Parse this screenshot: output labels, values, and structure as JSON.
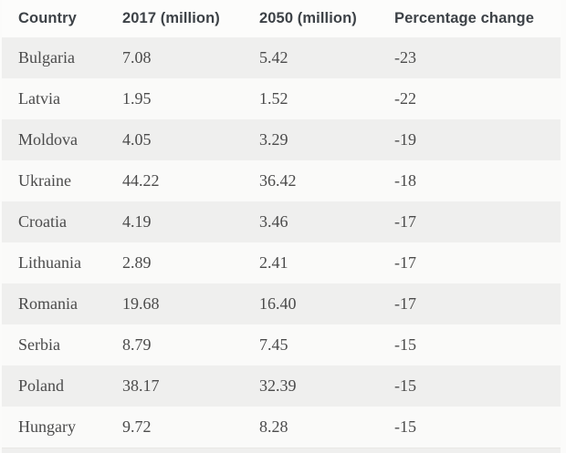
{
  "table": {
    "columns": [
      {
        "label": "Country"
      },
      {
        "label": "2017 (million)"
      },
      {
        "label": "2050 (million)"
      },
      {
        "label": "Percentage change"
      }
    ],
    "rows": [
      {
        "country": "Bulgaria",
        "pop2017": "7.08",
        "pop2050": "5.42",
        "change": "-23"
      },
      {
        "country": "Latvia",
        "pop2017": "1.95",
        "pop2050": "1.52",
        "change": "-22"
      },
      {
        "country": "Moldova",
        "pop2017": "4.05",
        "pop2050": "3.29",
        "change": "-19"
      },
      {
        "country": "Ukraine",
        "pop2017": "44.22",
        "pop2050": "36.42",
        "change": "-18"
      },
      {
        "country": "Croatia",
        "pop2017": "4.19",
        "pop2050": "3.46",
        "change": "-17"
      },
      {
        "country": "Lithuania",
        "pop2017": "2.89",
        "pop2050": "2.41",
        "change": "-17"
      },
      {
        "country": "Romania",
        "pop2017": "19.68",
        "pop2050": "16.40",
        "change": "-17"
      },
      {
        "country": "Serbia",
        "pop2017": "8.79",
        "pop2050": "7.45",
        "change": "-15"
      },
      {
        "country": "Poland",
        "pop2017": "38.17",
        "pop2050": "32.39",
        "change": "-15"
      },
      {
        "country": "Hungary",
        "pop2017": "9.72",
        "pop2050": "8.28",
        "change": "-15"
      }
    ]
  },
  "chart_data": {
    "type": "table",
    "columns": [
      "Country",
      "2017 (million)",
      "2050 (million)",
      "Percentage change"
    ],
    "rows": [
      [
        "Bulgaria",
        7.08,
        5.42,
        -23
      ],
      [
        "Latvia",
        1.95,
        1.52,
        -22
      ],
      [
        "Moldova",
        4.05,
        3.29,
        -19
      ],
      [
        "Ukraine",
        44.22,
        36.42,
        -18
      ],
      [
        "Croatia",
        4.19,
        3.46,
        -17
      ],
      [
        "Lithuania",
        2.89,
        2.41,
        -17
      ],
      [
        "Romania",
        19.68,
        16.4,
        -17
      ],
      [
        "Serbia",
        8.79,
        7.45,
        -15
      ],
      [
        "Poland",
        38.17,
        32.39,
        -15
      ],
      [
        "Hungary",
        9.72,
        8.28,
        -15
      ]
    ],
    "notes": "Population decline table; zebra striped rows, partial eleventh row cropped at bottom edge"
  },
  "colors": {
    "row_alt_bg": "#efefee",
    "row_base_bg": "#fafaf9",
    "header_bg": "#fcfcfb",
    "header_text": "#3d4247",
    "body_text": "#4b4b4b",
    "page_bg": "#fbfbfa"
  }
}
